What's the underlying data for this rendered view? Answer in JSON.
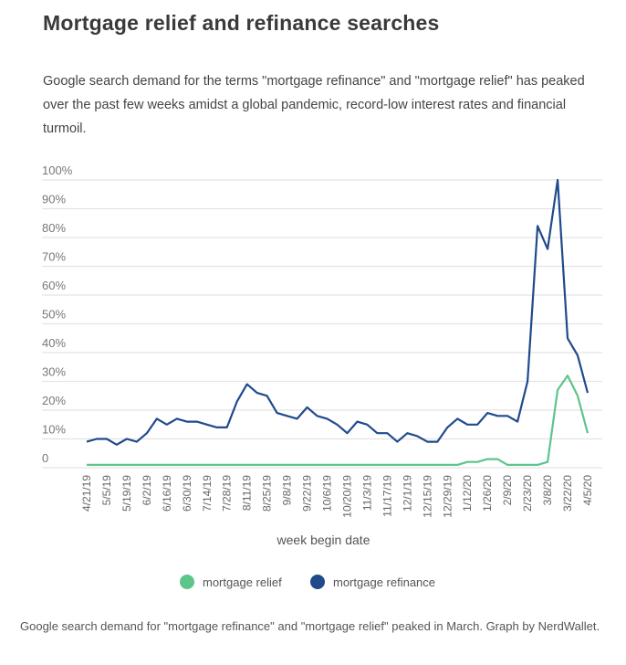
{
  "title": "Mortgage relief and refinance searches",
  "subtitle": "Google search demand for the terms \"mortgage refinance\" and \"mortgage relief\" has peaked over the past few weeks amidst a global pandemic, record-low interest rates and financial turmoil.",
  "caption": "Google search demand for \"mortgage refinance\" and \"mortgage relief\" peaked in March. Graph by NerdWallet.",
  "chart_data": {
    "type": "line",
    "title": "Mortgage relief and refinance searches",
    "xlabel": "week begin date",
    "ylabel": "",
    "ylim": [
      0,
      100
    ],
    "yticks": [
      "0",
      "10%",
      "20%",
      "30%",
      "40%",
      "50%",
      "60%",
      "70%",
      "80%",
      "90%",
      "100%"
    ],
    "xtick_labels": [
      "4/21/19",
      "5/5/19",
      "5/19/19",
      "6/2/19",
      "6/16/19",
      "6/30/19",
      "7/14/19",
      "7/28/19",
      "8/11/19",
      "8/25/19",
      "9/8/19",
      "9/22/19",
      "10/6/19",
      "10/20/19",
      "11/3/19",
      "11/17/19",
      "12/1/19",
      "12/15/19",
      "12/29/19",
      "1/12/20",
      "1/26/20",
      "2/9/20",
      "2/23/20",
      "3/8/20",
      "3/22/20",
      "4/5/20"
    ],
    "legend_position": "bottom",
    "grid": true,
    "series": [
      {
        "name": "mortgage relief",
        "color": "#5cc58a",
        "values": [
          1,
          1,
          1,
          1,
          1,
          1,
          1,
          1,
          1,
          1,
          1,
          1,
          1,
          1,
          1,
          1,
          1,
          1,
          1,
          1,
          1,
          1,
          1,
          1,
          1,
          1,
          1,
          1,
          1,
          1,
          1,
          1,
          1,
          1,
          1,
          1,
          1,
          1,
          2,
          2,
          3,
          3,
          1,
          1,
          1,
          1,
          2,
          27,
          32,
          25,
          12
        ]
      },
      {
        "name": "mortgage refinance",
        "color": "#1f4a8c",
        "values": [
          9,
          10,
          10,
          8,
          10,
          9,
          12,
          17,
          15,
          17,
          16,
          16,
          15,
          14,
          14,
          23,
          29,
          26,
          25,
          19,
          18,
          17,
          21,
          18,
          17,
          15,
          12,
          16,
          15,
          12,
          12,
          9,
          12,
          11,
          9,
          9,
          14,
          17,
          15,
          15,
          19,
          18,
          18,
          16,
          30,
          84,
          76,
          100,
          45,
          39,
          26
        ]
      }
    ]
  }
}
